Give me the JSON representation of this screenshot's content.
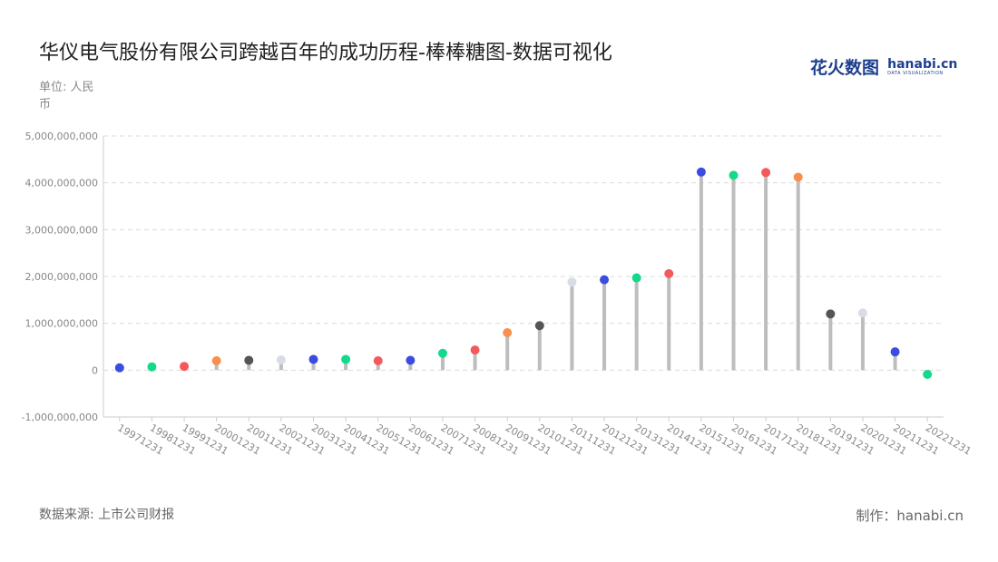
{
  "header": {
    "title": "华仪电气股份有限公司跨越百年的成功历程-棒棒糖图-数据可视化",
    "unit": "单位: 人民币"
  },
  "logo": {
    "cn": "花火数图",
    "en": "hanabi.cn",
    "en_sub": "DATA VISUALIZATION"
  },
  "footer": {
    "source": "数据来源: 上市公司财报",
    "credit": "制作：hanabi.cn"
  },
  "chart_data": {
    "type": "lollipop",
    "title": "",
    "xlabel": "",
    "ylabel": "",
    "ylim": [
      -1000000000,
      5000000000
    ],
    "yticks": [
      -1000000000,
      0,
      1000000000,
      2000000000,
      3000000000,
      4000000000,
      5000000000
    ],
    "ytick_labels": [
      "-1,000,000,000",
      "0",
      "1,000,000,000",
      "2,000,000,000",
      "3,000,000,000",
      "4,000,000,000",
      "5,000,000,000"
    ],
    "grid": true,
    "stem_color": "#bdbdbd",
    "categories": [
      "19971231",
      "19981231",
      "19991231",
      "20001231",
      "20011231",
      "20021231",
      "20031231",
      "20041231",
      "20051231",
      "20061231",
      "20071231",
      "20081231",
      "20091231",
      "20101231",
      "20111231",
      "20121231",
      "20131231",
      "20141231",
      "20151231",
      "20161231",
      "20171231",
      "20181231",
      "20191231",
      "20201231",
      "20211231",
      "20221231"
    ],
    "values": [
      50000000,
      70000000,
      80000000,
      200000000,
      210000000,
      220000000,
      230000000,
      230000000,
      200000000,
      210000000,
      360000000,
      430000000,
      800000000,
      950000000,
      1880000000,
      1930000000,
      1970000000,
      2060000000,
      4230000000,
      4160000000,
      4220000000,
      4120000000,
      1200000000,
      1220000000,
      390000000,
      -90000000
    ],
    "colors": [
      "#3b4de0",
      "#13d98a",
      "#f4595b",
      "#f88f4e",
      "#555555",
      "#d8dce6",
      "#3b4de0",
      "#13d98a",
      "#f4595b",
      "#3b4de0",
      "#13d98a",
      "#f4595b",
      "#f88f4e",
      "#555555",
      "#d8dce6",
      "#3b4de0",
      "#13d98a",
      "#f4595b",
      "#3b4de0",
      "#13d98a",
      "#f4595b",
      "#f88f4e",
      "#555555",
      "#d8dce6",
      "#3b4de0",
      "#13d98a"
    ]
  }
}
